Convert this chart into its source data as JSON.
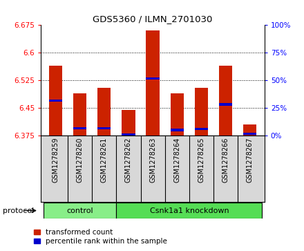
{
  "title": "GDS5360 / ILMN_2701030",
  "samples": [
    "GSM1278259",
    "GSM1278260",
    "GSM1278261",
    "GSM1278262",
    "GSM1278263",
    "GSM1278264",
    "GSM1278265",
    "GSM1278266",
    "GSM1278267"
  ],
  "bar_heights": [
    6.565,
    6.49,
    6.505,
    6.445,
    6.66,
    6.49,
    6.505,
    6.565,
    6.405
  ],
  "percentile_values": [
    6.47,
    6.395,
    6.395,
    6.378,
    6.53,
    6.39,
    6.393,
    6.46,
    6.38
  ],
  "ylim": [
    6.375,
    6.675
  ],
  "yticks": [
    6.375,
    6.45,
    6.525,
    6.6,
    6.675
  ],
  "right_yticks": [
    0,
    25,
    50,
    75,
    100
  ],
  "bar_color": "#cc2200",
  "blue_color": "#0000cc",
  "protocol_groups": [
    {
      "label": "control",
      "start": 0,
      "end": 3,
      "color": "#88ee88"
    },
    {
      "label": "Csnk1a1 knockdown",
      "start": 3,
      "end": 9,
      "color": "#55dd55"
    }
  ],
  "protocol_label": "protocol",
  "legend_items": [
    {
      "label": "transformed count",
      "color": "#cc2200"
    },
    {
      "label": "percentile rank within the sample",
      "color": "#0000cc"
    }
  ],
  "bar_width": 0.55,
  "xtick_bg": "#d8d8d8",
  "spine_color": "#000000"
}
